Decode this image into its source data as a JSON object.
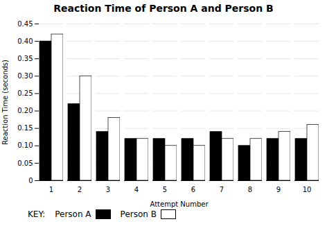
{
  "chart_data": {
    "type": "bar",
    "title": "Reaction Time of Person A and Person B",
    "xlabel": "Attempt Number",
    "ylabel": "Reaction Time (seconds)",
    "categories": [
      "1",
      "2",
      "3",
      "4",
      "5",
      "6",
      "7",
      "8",
      "9",
      "10"
    ],
    "series": [
      {
        "name": "Person A",
        "color": "#000000",
        "values": [
          0.4,
          0.22,
          0.14,
          0.12,
          0.12,
          0.12,
          0.14,
          0.1,
          0.12,
          0.12
        ]
      },
      {
        "name": "Person B",
        "color": "#ffffff",
        "values": [
          0.42,
          0.3,
          0.18,
          0.12,
          0.1,
          0.1,
          0.12,
          0.12,
          0.14,
          0.16
        ]
      }
    ],
    "ylim": [
      0,
      0.45
    ],
    "yticks": [
      0,
      0.05,
      {
        "value": 0.1,
        "label": "0.10"
      },
      0.15,
      {
        "value": 0.2,
        "label": "0.20"
      },
      0.25,
      {
        "value": 0.3,
        "label": "0.30"
      },
      0.35,
      {
        "value": 0.4,
        "label": "0.40"
      },
      0.45
    ],
    "grid": true,
    "legend": "bottom",
    "annotations": [
      "KEY:"
    ]
  }
}
